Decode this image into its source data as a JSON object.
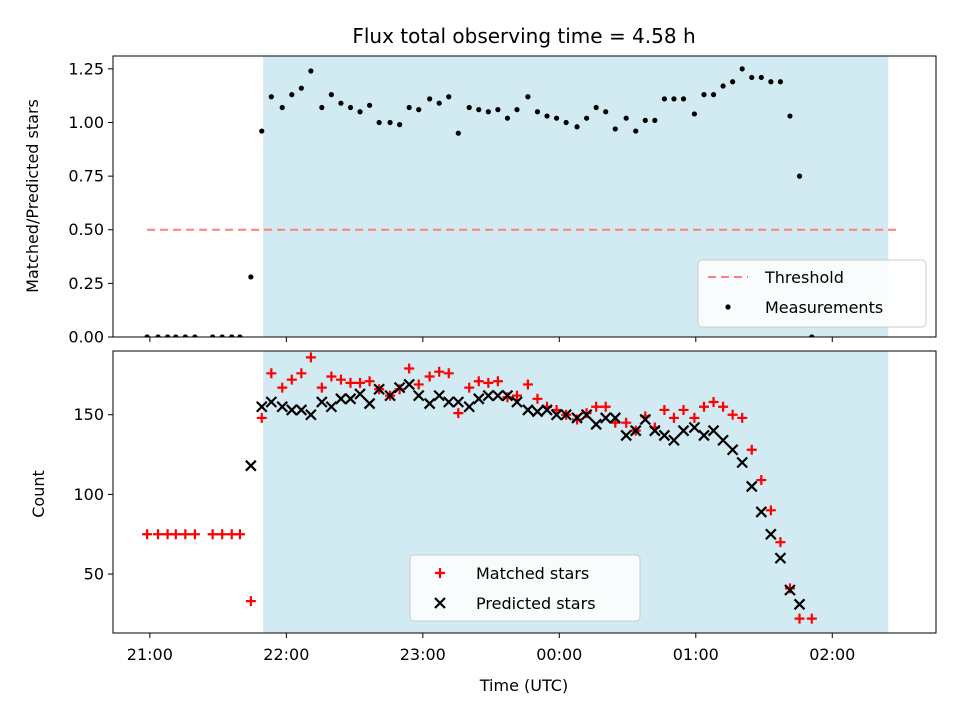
{
  "chart_data": {
    "type": "scatter",
    "title": "Flux total observing time = 4.58 h",
    "xlabel": "Time (UTC)",
    "x_unit": "hours after 21:00 UTC",
    "x_ticks": [
      {
        "label": "21:00",
        "value": 0
      },
      {
        "label": "22:00",
        "value": 1
      },
      {
        "label": "23:00",
        "value": 2
      },
      {
        "label": "00:00",
        "value": 3
      },
      {
        "label": "01:00",
        "value": 4
      },
      {
        "label": "02:00",
        "value": 5
      }
    ],
    "xlim": [
      -0.27,
      5.76
    ],
    "observing_window": [
      0.83,
      5.41
    ],
    "colors": {
      "window": "#add8e6",
      "threshold": "#ff7f7f",
      "measurements": "#000000",
      "matched": "#ff0000",
      "predicted": "#000000"
    },
    "panels": [
      {
        "name": "ratio",
        "ylabel": "Matched/Predicted stars",
        "ylim": [
          0,
          1.31
        ],
        "yticks": [
          0.0,
          0.25,
          0.5,
          0.75,
          1.0,
          1.25
        ],
        "ytick_labels": [
          "0.00",
          "0.25",
          "0.50",
          "0.75",
          "1.00",
          "1.25"
        ],
        "legend_location": "lower right",
        "threshold": {
          "name": "Threshold",
          "value": 0.5,
          "x_range": [
            -0.02,
            5.49
          ]
        },
        "measurements": {
          "name": "Measurements",
          "points": [
            [
              -0.02,
              0.0
            ],
            [
              0.06,
              0.0
            ],
            [
              0.13,
              0.0
            ],
            [
              0.19,
              0.0
            ],
            [
              0.26,
              0.0
            ],
            [
              0.33,
              0.0
            ],
            [
              0.46,
              0.0
            ],
            [
              0.53,
              0.0
            ],
            [
              0.6,
              0.0
            ],
            [
              0.66,
              0.0
            ],
            [
              0.74,
              0.28
            ],
            [
              0.82,
              0.96
            ],
            [
              0.89,
              1.12
            ],
            [
              0.97,
              1.07
            ],
            [
              1.04,
              1.13
            ],
            [
              1.11,
              1.16
            ],
            [
              1.18,
              1.24
            ],
            [
              1.26,
              1.07
            ],
            [
              1.33,
              1.13
            ],
            [
              1.4,
              1.09
            ],
            [
              1.47,
              1.07
            ],
            [
              1.54,
              1.05
            ],
            [
              1.61,
              1.08
            ],
            [
              1.68,
              1.0
            ],
            [
              1.76,
              1.0
            ],
            [
              1.83,
              0.99
            ],
            [
              1.9,
              1.07
            ],
            [
              1.97,
              1.06
            ],
            [
              2.05,
              1.11
            ],
            [
              2.12,
              1.09
            ],
            [
              2.19,
              1.12
            ],
            [
              2.26,
              0.95
            ],
            [
              2.34,
              1.07
            ],
            [
              2.41,
              1.06
            ],
            [
              2.48,
              1.05
            ],
            [
              2.55,
              1.06
            ],
            [
              2.62,
              1.02
            ],
            [
              2.69,
              1.06
            ],
            [
              2.77,
              1.12
            ],
            [
              2.84,
              1.05
            ],
            [
              2.91,
              1.03
            ],
            [
              2.98,
              1.02
            ],
            [
              3.05,
              1.0
            ],
            [
              3.13,
              0.98
            ],
            [
              3.2,
              1.02
            ],
            [
              3.27,
              1.07
            ],
            [
              3.34,
              1.05
            ],
            [
              3.41,
              0.97
            ],
            [
              3.49,
              1.02
            ],
            [
              3.56,
              0.96
            ],
            [
              3.63,
              1.01
            ],
            [
              3.7,
              1.01
            ],
            [
              3.77,
              1.11
            ],
            [
              3.84,
              1.11
            ],
            [
              3.91,
              1.11
            ],
            [
              3.99,
              1.04
            ],
            [
              4.06,
              1.13
            ],
            [
              4.13,
              1.13
            ],
            [
              4.2,
              1.17
            ],
            [
              4.27,
              1.19
            ],
            [
              4.34,
              1.25
            ],
            [
              4.41,
              1.21
            ],
            [
              4.48,
              1.21
            ],
            [
              4.55,
              1.19
            ],
            [
              4.62,
              1.19
            ],
            [
              4.69,
              1.03
            ],
            [
              4.76,
              0.75
            ],
            [
              4.85,
              0.0
            ]
          ]
        }
      },
      {
        "name": "counts",
        "ylabel": "Count",
        "ylim": [
          13,
          190
        ],
        "yticks": [
          50,
          100,
          150
        ],
        "ytick_labels": [
          "50",
          "100",
          "150"
        ],
        "legend_location": "lower center",
        "series": [
          {
            "name": "Matched stars",
            "marker": "plus",
            "points": [
              [
                -0.02,
                75
              ],
              [
                0.06,
                75
              ],
              [
                0.13,
                75
              ],
              [
                0.19,
                75
              ],
              [
                0.26,
                75
              ],
              [
                0.33,
                75
              ],
              [
                0.46,
                75
              ],
              [
                0.53,
                75
              ],
              [
                0.6,
                75
              ],
              [
                0.66,
                75
              ],
              [
                0.74,
                33
              ],
              [
                0.82,
                148
              ],
              [
                0.89,
                176
              ],
              [
                0.97,
                167
              ],
              [
                1.04,
                172
              ],
              [
                1.11,
                176
              ],
              [
                1.18,
                186
              ],
              [
                1.26,
                167
              ],
              [
                1.33,
                174
              ],
              [
                1.4,
                172
              ],
              [
                1.47,
                170
              ],
              [
                1.54,
                170
              ],
              [
                1.61,
                171
              ],
              [
                1.68,
                166
              ],
              [
                1.76,
                162
              ],
              [
                1.83,
                166
              ],
              [
                1.9,
                179
              ],
              [
                1.97,
                169
              ],
              [
                2.05,
                174
              ],
              [
                2.12,
                177
              ],
              [
                2.19,
                176
              ],
              [
                2.26,
                151
              ],
              [
                2.34,
                167
              ],
              [
                2.41,
                171
              ],
              [
                2.48,
                170
              ],
              [
                2.55,
                171
              ],
              [
                2.62,
                161
              ],
              [
                2.69,
                162
              ],
              [
                2.77,
                169
              ],
              [
                2.84,
                160
              ],
              [
                2.91,
                155
              ],
              [
                2.98,
                153
              ],
              [
                3.05,
                150
              ],
              [
                3.13,
                147
              ],
              [
                3.2,
                151
              ],
              [
                3.27,
                155
              ],
              [
                3.34,
                155
              ],
              [
                3.41,
                145
              ],
              [
                3.49,
                145
              ],
              [
                3.56,
                140
              ],
              [
                3.63,
                149
              ],
              [
                3.7,
                142
              ],
              [
                3.77,
                153
              ],
              [
                3.84,
                148
              ],
              [
                3.91,
                153
              ],
              [
                3.99,
                148
              ],
              [
                4.06,
                155
              ],
              [
                4.13,
                158
              ],
              [
                4.2,
                155
              ],
              [
                4.27,
                150
              ],
              [
                4.34,
                148
              ],
              [
                4.41,
                128
              ],
              [
                4.48,
                109
              ],
              [
                4.55,
                90
              ],
              [
                4.62,
                70
              ],
              [
                4.69,
                41
              ],
              [
                4.76,
                22
              ],
              [
                4.85,
                22
              ]
            ]
          },
          {
            "name": "Predicted stars",
            "marker": "x",
            "points": [
              [
                0.74,
                118
              ],
              [
                0.82,
                155
              ],
              [
                0.89,
                158
              ],
              [
                0.97,
                155
              ],
              [
                1.04,
                153
              ],
              [
                1.11,
                153
              ],
              [
                1.18,
                150
              ],
              [
                1.26,
                158
              ],
              [
                1.33,
                155
              ],
              [
                1.4,
                160
              ],
              [
                1.47,
                160
              ],
              [
                1.54,
                163
              ],
              [
                1.61,
                157
              ],
              [
                1.68,
                166
              ],
              [
                1.76,
                162
              ],
              [
                1.83,
                167
              ],
              [
                1.9,
                169
              ],
              [
                1.97,
                162
              ],
              [
                2.05,
                157
              ],
              [
                2.12,
                162
              ],
              [
                2.19,
                158
              ],
              [
                2.26,
                158
              ],
              [
                2.34,
                155
              ],
              [
                2.41,
                160
              ],
              [
                2.48,
                162
              ],
              [
                2.55,
                162
              ],
              [
                2.62,
                162
              ],
              [
                2.69,
                158
              ],
              [
                2.77,
                153
              ],
              [
                2.84,
                152
              ],
              [
                2.91,
                153
              ],
              [
                2.98,
                150
              ],
              [
                3.05,
                150
              ],
              [
                3.13,
                148
              ],
              [
                3.2,
                150
              ],
              [
                3.27,
                144
              ],
              [
                3.34,
                148
              ],
              [
                3.41,
                148
              ],
              [
                3.49,
                137
              ],
              [
                3.56,
                140
              ],
              [
                3.63,
                147
              ],
              [
                3.7,
                140
              ],
              [
                3.77,
                137
              ],
              [
                3.84,
                134
              ],
              [
                3.91,
                140
              ],
              [
                3.99,
                142
              ],
              [
                4.06,
                137
              ],
              [
                4.13,
                140
              ],
              [
                4.2,
                134
              ],
              [
                4.27,
                128
              ],
              [
                4.34,
                120
              ],
              [
                4.41,
                105
              ],
              [
                4.48,
                89
              ],
              [
                4.55,
                75
              ],
              [
                4.62,
                60
              ],
              [
                4.69,
                40
              ],
              [
                4.76,
                31
              ]
            ]
          }
        ]
      }
    ]
  }
}
